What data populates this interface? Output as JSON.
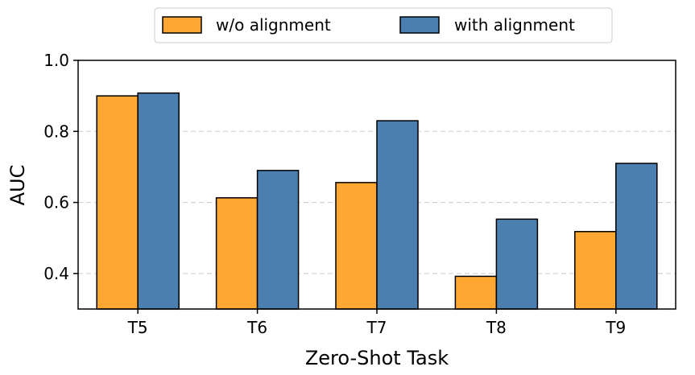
{
  "chart_data": {
    "type": "bar",
    "title": "",
    "xlabel": "Zero-Shot Task",
    "ylabel": "AUC",
    "categories": [
      "T5",
      "T6",
      "T7",
      "T8",
      "T9"
    ],
    "series": [
      {
        "name": "w/o alignment",
        "color": "#FFA733",
        "values": [
          0.9,
          0.613,
          0.656,
          0.392,
          0.518
        ]
      },
      {
        "name": "with alignment",
        "color": "#4A7FB0",
        "values": [
          0.908,
          0.69,
          0.83,
          0.553,
          0.71
        ]
      }
    ],
    "ylim": [
      0.3,
      1.0
    ],
    "yticks": [
      0.4,
      0.6,
      0.8,
      1.0
    ],
    "ytick_labels": [
      "0.4",
      "0.6",
      "0.8",
      "1.0"
    ],
    "grid": "horizontal dashed",
    "legend_position": "top-center"
  }
}
